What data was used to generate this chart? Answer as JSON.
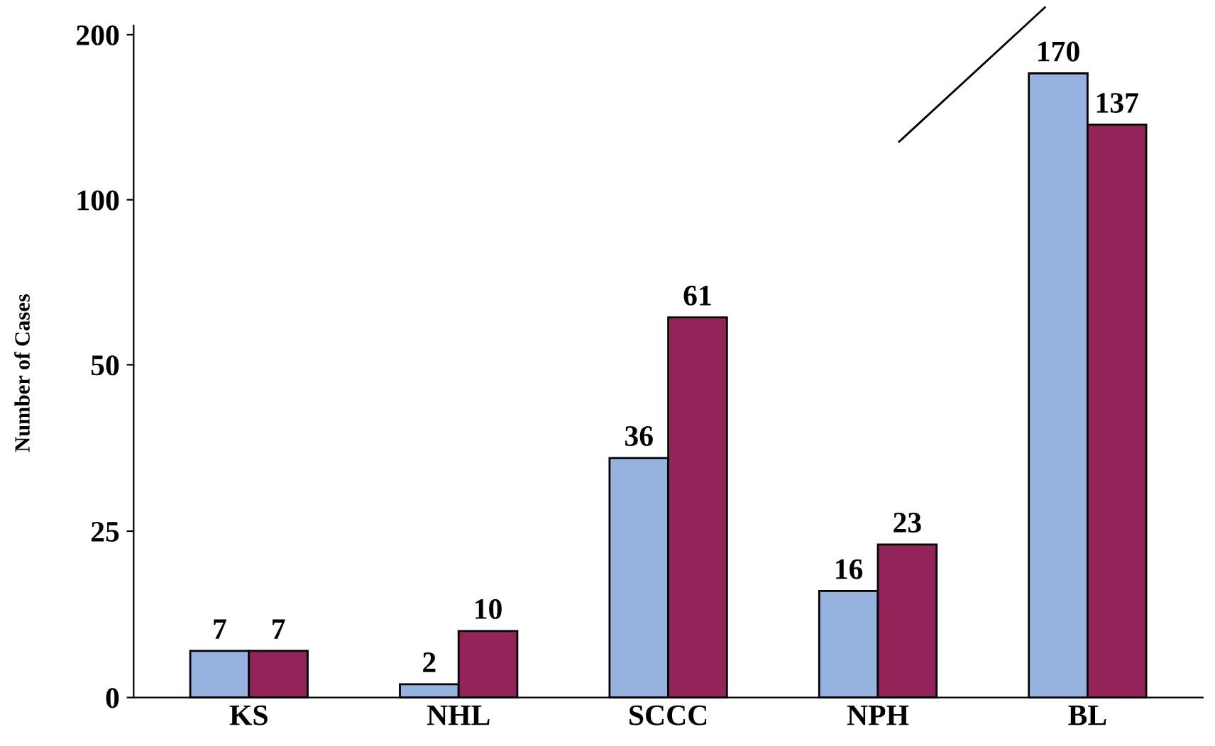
{
  "chart_data": [
    {
      "type": "bar",
      "ylabel": "Number of Cases",
      "categories": [
        null,
        null,
        null,
        null,
        null
      ],
      "log": true,
      "series": [
        {
          "color": "#95b3de",
          "values": [
            null,
            null,
            null,
            null,
            170
          ]
        },
        {
          "color": "#93245a",
          "values": [
            null,
            null,
            61,
            null,
            137
          ]
        }
      ],
      "ylim": [
        50,
        208
      ],
      "yticks": [
        100,
        200
      ],
      "data_labels": true,
      "tick_labels": "y"
    },
    {
      "type": "bar",
      "categories": [
        "KS",
        "NHL",
        "SCCC",
        "NPH",
        "BL"
      ],
      "series": [
        {
          "color": "#95b3de",
          "values": [
            7,
            2,
            36,
            16,
            null
          ]
        },
        {
          "color": "#93245a",
          "values": [
            7,
            10,
            null,
            23,
            null
          ]
        }
      ],
      "ylim": [
        0,
        50
      ],
      "yticks": [
        0,
        25,
        50
      ],
      "data_labels": true,
      "grid": false,
      "legend": false
    }
  ]
}
